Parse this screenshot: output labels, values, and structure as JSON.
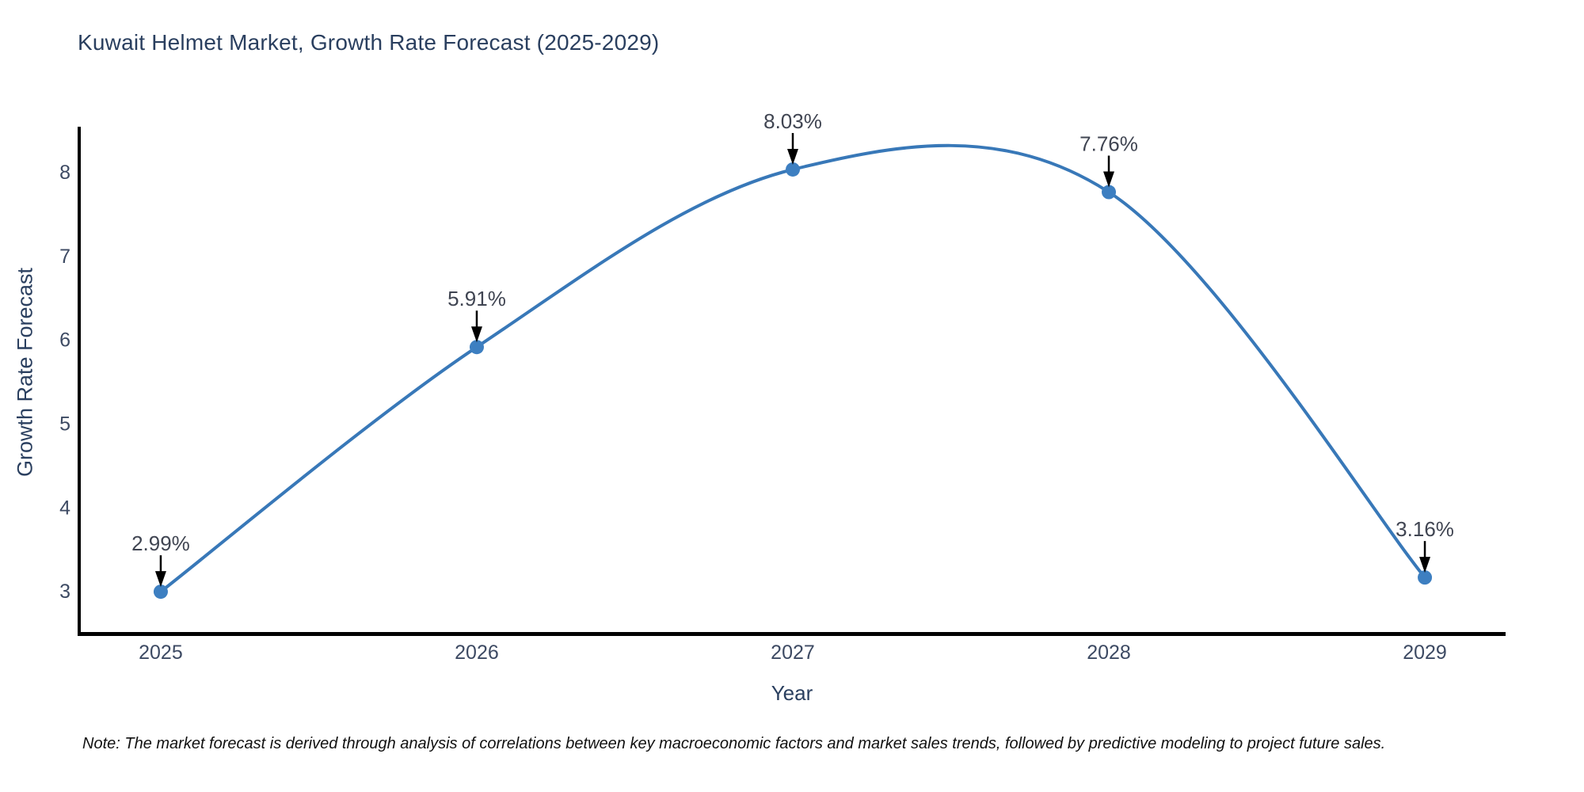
{
  "title": "Kuwait Helmet Market, Growth Rate Forecast (2025-2029)",
  "note": "Note: The market forecast is derived through analysis of correlations between key macroeconomic factors and market sales trends, followed by predictive modeling to project future sales.",
  "chart_data": {
    "type": "line",
    "title": "Kuwait Helmet Market, Growth Rate Forecast (2025-2029)",
    "xlabel": "Year",
    "ylabel": "Growth Rate Forecast",
    "categories": [
      "2025",
      "2026",
      "2027",
      "2028",
      "2029"
    ],
    "x": [
      2025,
      2026,
      2027,
      2028,
      2029
    ],
    "values": [
      2.99,
      5.91,
      8.03,
      7.76,
      3.16
    ],
    "point_labels": [
      "2.99%",
      "5.91%",
      "8.03%",
      "7.76%",
      "3.16%"
    ],
    "yticks": [
      3,
      4,
      5,
      6,
      7,
      8
    ],
    "xlim": [
      2024.742,
      2029.253
    ],
    "ylim": [
      2.49,
      8.54
    ],
    "line_shape": "spline",
    "grid": false,
    "legend": "none",
    "colors": {
      "line": "#3878b8",
      "marker": "#3d7fc1",
      "axis": "#000000",
      "tick_label": "#3d4a63",
      "annotation_text": "#404552",
      "annotation_arrow": "#000000"
    }
  }
}
